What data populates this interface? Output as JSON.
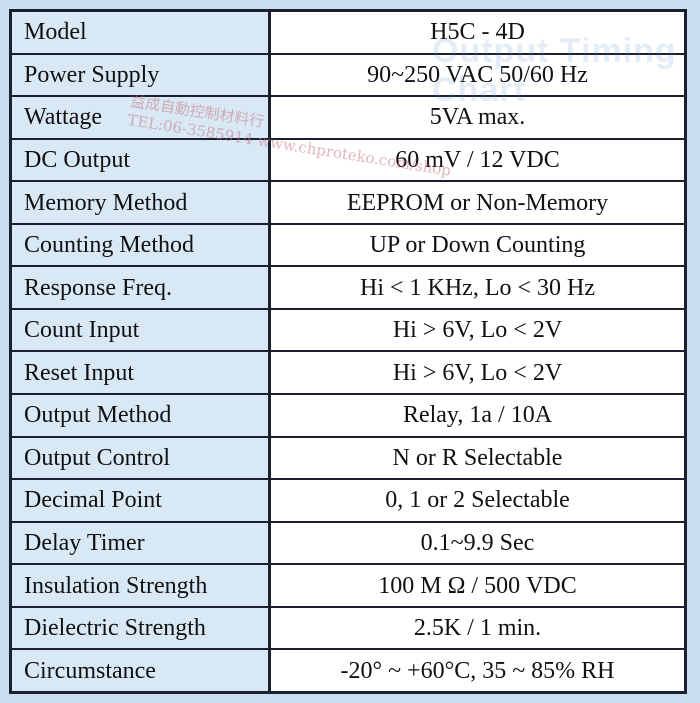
{
  "watermark": {
    "title": "Output Timing Chart",
    "shop_name": "益成自動控制材料行",
    "shop_line": "TEL:06-3585914  www.chproteko.com/shop"
  },
  "spec_table": {
    "rows": [
      {
        "label": "Model",
        "value": "H5C - 4D"
      },
      {
        "label": "Power Supply",
        "value": "90~250 VAC 50/60 Hz"
      },
      {
        "label": "Wattage",
        "value": "5VA max."
      },
      {
        "label": "DC Output",
        "value": "60 mV / 12 VDC"
      },
      {
        "label": "Memory Method",
        "value": "EEPROM or Non-Memory"
      },
      {
        "label": "Counting Method",
        "value": "UP or Down Counting"
      },
      {
        "label": "Response Freq.",
        "value": "Hi < 1 KHz, Lo < 30 Hz"
      },
      {
        "label": "Count Input",
        "value": "Hi > 6V, Lo < 2V"
      },
      {
        "label": "Reset Input",
        "value": "Hi > 6V, Lo < 2V"
      },
      {
        "label": "Output Method",
        "value": "Relay, 1a / 10A"
      },
      {
        "label": "Output Control",
        "value": "N or R Selectable"
      },
      {
        "label": "Decimal Point",
        "value": "0, 1 or 2 Selectable"
      },
      {
        "label": "Delay Timer",
        "value": "0.1~9.9 Sec"
      },
      {
        "label": "Insulation Strength",
        "value": "100 M Ω / 500 VDC"
      },
      {
        "label": "Dielectric Strength",
        "value": "2.5K / 1 min."
      },
      {
        "label": "Circumstance",
        "value": "-20° ~ +60°C, 35 ~ 85% RH"
      }
    ]
  }
}
